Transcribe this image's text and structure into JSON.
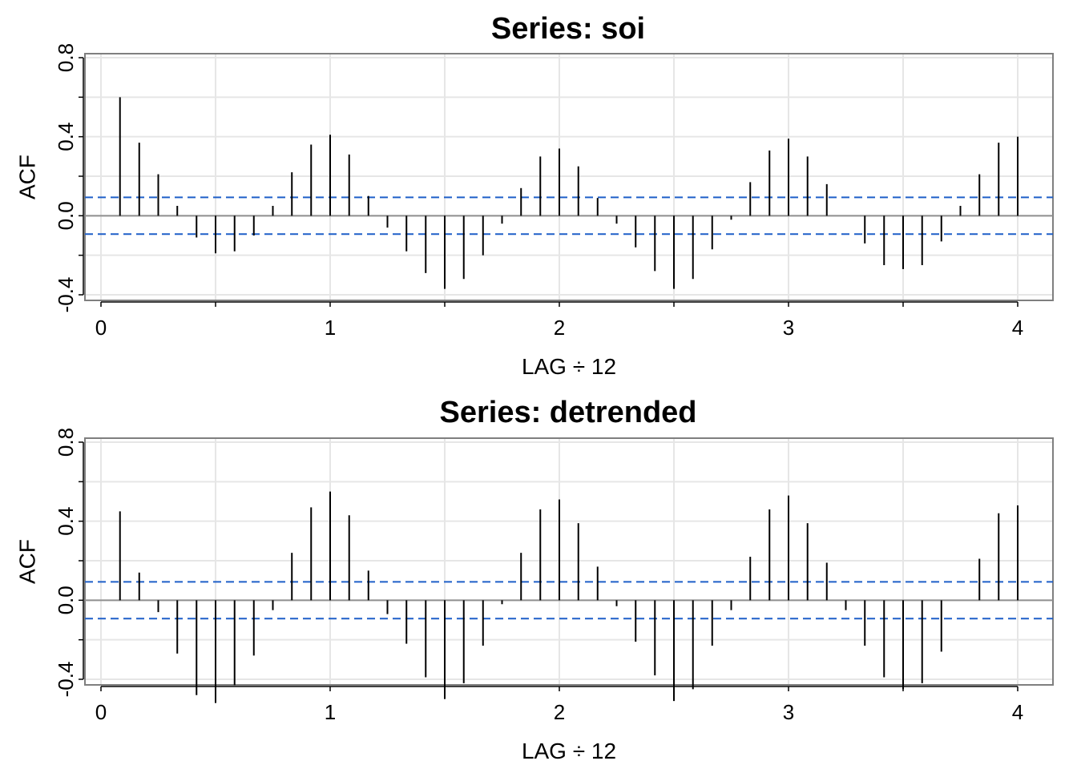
{
  "chart_data": [
    {
      "type": "bar",
      "title": "Series:  soi",
      "xlabel": "LAG ÷ 12",
      "ylabel": "ACF",
      "xlim": [
        0,
        4.2
      ],
      "ylim": [
        -0.4,
        0.8
      ],
      "xticks": [
        "0",
        "1",
        "2",
        "3",
        "4"
      ],
      "yticks": [
        "-0.4",
        "0.0",
        "0.4",
        "0.8"
      ],
      "grid": true,
      "confidence_band": 0.093,
      "colors": {
        "stems": "#000000",
        "band": "#1f5fc8",
        "grid": "#e6e6e6",
        "zero": "#909090",
        "frame": "#7f7f7f"
      },
      "x": [
        0.083,
        0.167,
        0.25,
        0.333,
        0.417,
        0.5,
        0.583,
        0.667,
        0.75,
        0.833,
        0.917,
        1.0,
        1.083,
        1.167,
        1.25,
        1.333,
        1.417,
        1.5,
        1.583,
        1.667,
        1.75,
        1.833,
        1.917,
        2.0,
        2.083,
        2.167,
        2.25,
        2.333,
        2.417,
        2.5,
        2.583,
        2.667,
        2.75,
        2.833,
        2.917,
        3.0,
        3.083,
        3.167,
        3.25,
        3.333,
        3.417,
        3.5,
        3.583,
        3.667,
        3.75,
        3.833,
        3.917,
        4.0
      ],
      "values": [
        0.6,
        0.37,
        0.21,
        0.05,
        -0.11,
        -0.19,
        -0.18,
        -0.1,
        0.05,
        0.22,
        0.36,
        0.41,
        0.31,
        0.1,
        -0.06,
        -0.18,
        -0.29,
        -0.37,
        -0.32,
        -0.2,
        -0.04,
        0.14,
        0.3,
        0.34,
        0.25,
        0.09,
        -0.04,
        -0.16,
        -0.28,
        -0.37,
        -0.32,
        -0.17,
        -0.02,
        0.17,
        0.33,
        0.39,
        0.3,
        0.16,
        0.0,
        -0.14,
        -0.25,
        -0.27,
        -0.25,
        -0.13,
        0.05,
        0.21,
        0.37,
        0.4
      ]
    },
    {
      "type": "bar",
      "title": "Series:  detrended",
      "xlabel": "LAG ÷ 12",
      "ylabel": "ACF",
      "xlim": [
        0,
        4.2
      ],
      "ylim": [
        -0.4,
        0.8
      ],
      "xticks": [
        "0",
        "1",
        "2",
        "3",
        "4"
      ],
      "yticks": [
        "-0.4",
        "0.0",
        "0.4",
        "0.8"
      ],
      "grid": true,
      "confidence_band": 0.093,
      "colors": {
        "stems": "#000000",
        "band": "#1f5fc8",
        "grid": "#e6e6e6",
        "zero": "#909090",
        "frame": "#7f7f7f"
      },
      "x": [
        0.083,
        0.167,
        0.25,
        0.333,
        0.417,
        0.5,
        0.583,
        0.667,
        0.75,
        0.833,
        0.917,
        1.0,
        1.083,
        1.167,
        1.25,
        1.333,
        1.417,
        1.5,
        1.583,
        1.667,
        1.75,
        1.833,
        1.917,
        2.0,
        2.083,
        2.167,
        2.25,
        2.333,
        2.417,
        2.5,
        2.583,
        2.667,
        2.75,
        2.833,
        2.917,
        3.0,
        3.083,
        3.167,
        3.25,
        3.333,
        3.417,
        3.5,
        3.583,
        3.667,
        3.75,
        3.833,
        3.917,
        4.0
      ],
      "values": [
        0.45,
        0.14,
        -0.06,
        -0.27,
        -0.48,
        -0.52,
        -0.43,
        -0.28,
        -0.05,
        0.24,
        0.47,
        0.55,
        0.43,
        0.15,
        -0.07,
        -0.22,
        -0.39,
        -0.5,
        -0.42,
        -0.23,
        -0.02,
        0.24,
        0.46,
        0.51,
        0.39,
        0.17,
        -0.03,
        -0.21,
        -0.38,
        -0.51,
        -0.45,
        -0.23,
        -0.05,
        0.22,
        0.46,
        0.53,
        0.39,
        0.19,
        -0.05,
        -0.23,
        -0.39,
        -0.45,
        -0.42,
        -0.26,
        0.0,
        0.21,
        0.44,
        0.48
      ]
    }
  ]
}
